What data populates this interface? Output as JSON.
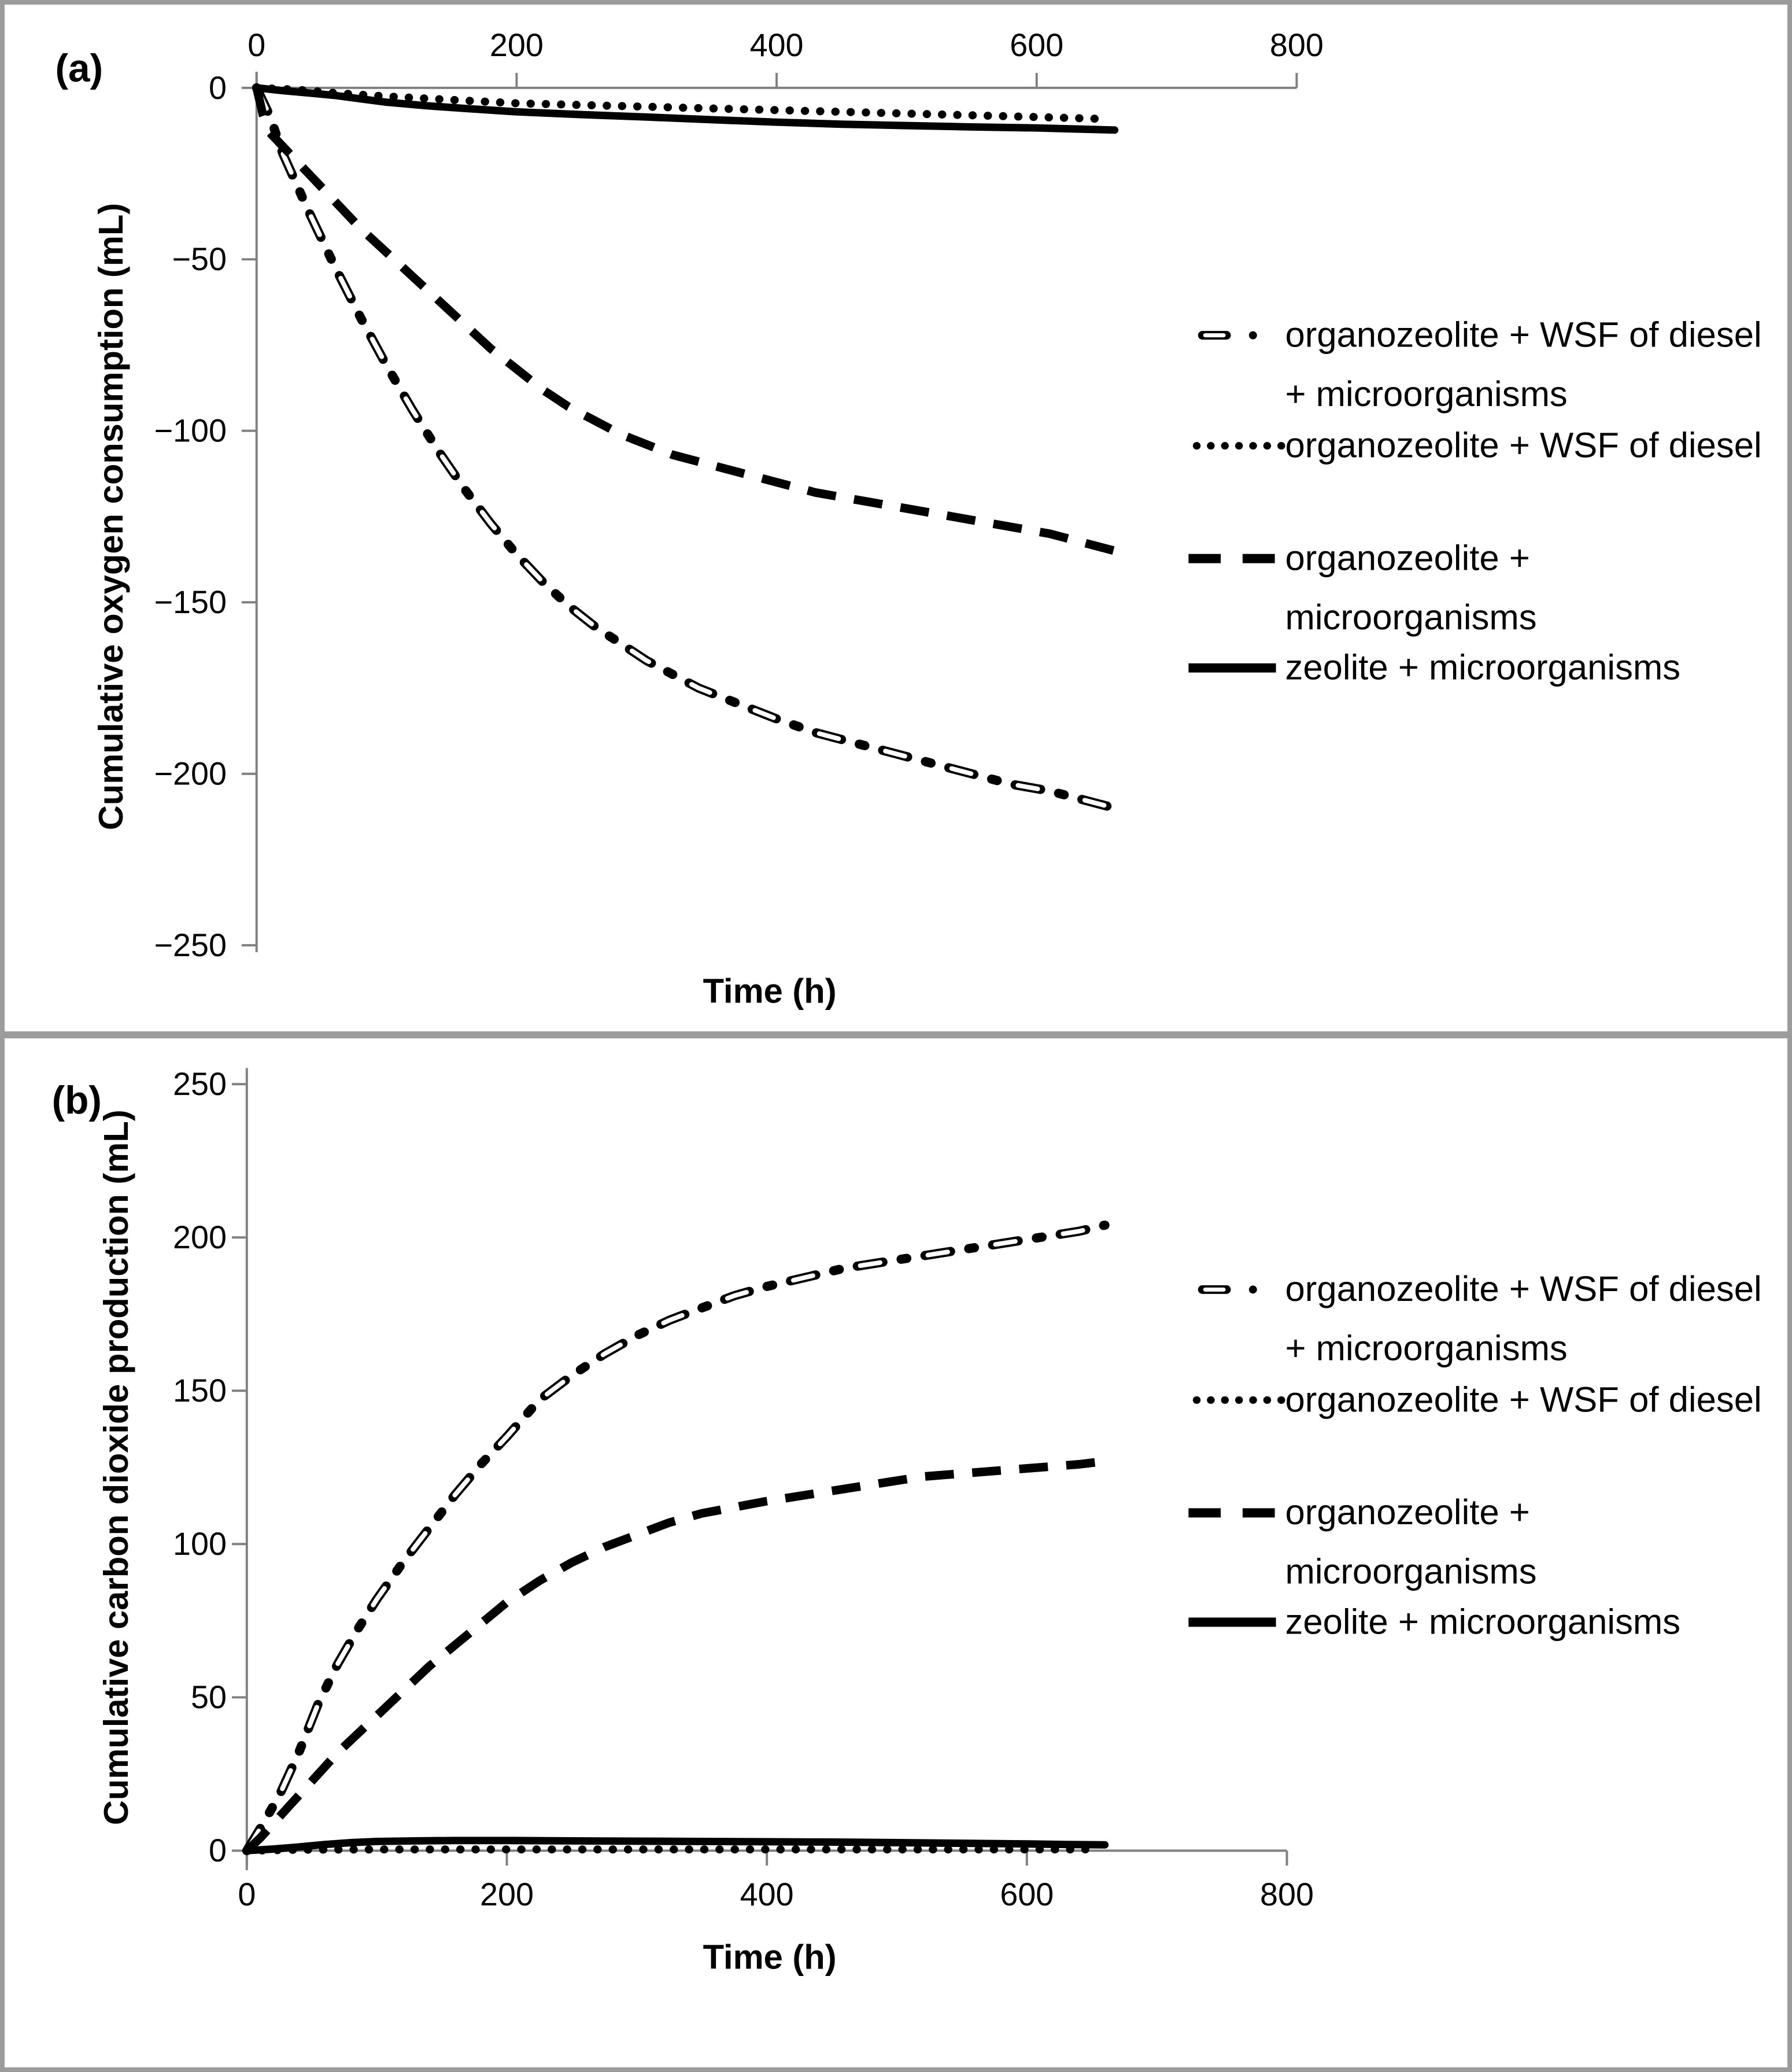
{
  "figure": {
    "panels": [
      {
        "panel_label": "(a)",
        "x_axis_title": "Time (h)",
        "y_axis_title": "Cumulative oxygen consumption (mL)"
      },
      {
        "panel_label": "(b)",
        "x_axis_title": "Time (h)",
        "y_axis_title": "Cumulative carbon dioxide production (mL)"
      }
    ],
    "colors": {
      "curve": "#000000",
      "axis": "#808080",
      "frame": "#9c9c9c",
      "background": "#ffffff"
    }
  },
  "legend": {
    "position": "right",
    "entries": [
      {
        "style": "dashdot-open",
        "lines": [
          "organozeolite + WSF of diesel",
          "+ microorganisms"
        ]
      },
      {
        "style": "dotted",
        "lines": [
          "organozeolite + WSF of diesel"
        ]
      },
      {
        "style": "dashed",
        "lines": [
          "organozeolite +",
          "microorganisms"
        ]
      },
      {
        "style": "solid",
        "lines": [
          "zeolite + microorganisms"
        ]
      }
    ]
  },
  "chart_data": [
    {
      "type": "line",
      "panel": "a",
      "title": "",
      "xlabel": "Time (h)",
      "ylabel": "Cumulative oxygen consumption (mL)",
      "xlim": [
        0,
        800
      ],
      "ylim": [
        -250,
        0
      ],
      "xticks": [
        0,
        200,
        400,
        600,
        800
      ],
      "yticks": [
        0,
        -50,
        -100,
        -150,
        -200,
        -250
      ],
      "x_axis_position": "top",
      "grid": false,
      "legend_position": "right",
      "series": [
        {
          "name": "organozeolite + WSF of diesel + microorganisms",
          "style": "dashdot-open",
          "x": [
            0,
            10,
            20,
            40,
            60,
            80,
            100,
            120,
            140,
            160,
            180,
            200,
            220,
            240,
            260,
            280,
            300,
            320,
            340,
            360,
            380,
            400,
            430,
            460,
            490,
            520,
            550,
            580,
            610,
            640,
            660
          ],
          "y": [
            0,
            -8,
            -19,
            -36,
            -52,
            -67,
            -81,
            -94,
            -106,
            -117,
            -127,
            -136,
            -144,
            -151,
            -157,
            -162,
            -167,
            -171,
            -175,
            -178,
            -181,
            -184,
            -188,
            -191,
            -194,
            -197,
            -200,
            -203,
            -205,
            -208,
            -210
          ]
        },
        {
          "name": "organozeolite + WSF of diesel",
          "style": "dotted",
          "x": [
            0,
            30,
            60,
            100,
            150,
            200,
            250,
            300,
            350,
            400,
            450,
            500,
            550,
            600,
            645
          ],
          "y": [
            0,
            -0.5,
            -1.5,
            -2.5,
            -3.5,
            -4.5,
            -5,
            -5.5,
            -6,
            -6.5,
            -7,
            -7.5,
            -8,
            -8.5,
            -9
          ]
        },
        {
          "name": "organozeolite + microorganisms",
          "style": "dashed",
          "x": [
            0,
            5,
            10,
            20,
            40,
            60,
            80,
            100,
            120,
            140,
            160,
            180,
            200,
            220,
            240,
            260,
            280,
            300,
            320,
            340,
            360,
            380,
            400,
            430,
            460,
            490,
            520,
            550,
            580,
            610,
            640,
            660
          ],
          "y": [
            0,
            -8,
            -13,
            -17,
            -25,
            -33,
            -41,
            -48,
            -55,
            -62,
            -69,
            -76,
            -82,
            -88,
            -93,
            -97,
            -101,
            -104,
            -107,
            -109,
            -111,
            -113,
            -115,
            -118,
            -120,
            -122,
            -124,
            -126,
            -128,
            -130,
            -133,
            -135
          ]
        },
        {
          "name": "zeolite + microorganisms",
          "style": "solid",
          "x": [
            0,
            20,
            40,
            60,
            80,
            100,
            130,
            160,
            200,
            250,
            300,
            350,
            400,
            450,
            500,
            550,
            600,
            630,
            660
          ],
          "y": [
            0,
            -0.8,
            -1.5,
            -2.2,
            -3.2,
            -4.2,
            -5.2,
            -6,
            -7,
            -7.8,
            -8.5,
            -9.3,
            -10,
            -10.6,
            -11,
            -11.4,
            -11.7,
            -12,
            -12.3
          ]
        }
      ]
    },
    {
      "type": "line",
      "panel": "b",
      "title": "",
      "xlabel": "Time (h)",
      "ylabel": "Cumulative carbon dioxide production (mL)",
      "xlim": [
        0,
        800
      ],
      "ylim": [
        0,
        250
      ],
      "xticks": [
        0,
        200,
        400,
        600,
        800
      ],
      "yticks": [
        250,
        200,
        150,
        100,
        50,
        0
      ],
      "x_axis_position": "bottom",
      "grid": false,
      "legend_position": "right",
      "series": [
        {
          "name": "organozeolite + WSF of diesel + microorganisms",
          "style": "dashdot-open",
          "x": [
            0,
            10,
            25,
            40,
            55,
            70,
            85,
            100,
            120,
            140,
            160,
            180,
            200,
            225,
            250,
            275,
            300,
            325,
            350,
            375,
            400,
            430,
            460,
            490,
            520,
            550,
            580,
            610,
            640,
            660
          ],
          "y": [
            0,
            7,
            18,
            32,
            48,
            61,
            72,
            82,
            94,
            105,
            116,
            126,
            135,
            147,
            155,
            162,
            168,
            173,
            177,
            181,
            184,
            187,
            190,
            192,
            194,
            196,
            198,
            200,
            202,
            204
          ]
        },
        {
          "name": "organozeolite + WSF of diesel",
          "style": "dotted",
          "x": [
            0,
            40,
            100,
            200,
            300,
            400,
            500,
            600,
            645
          ],
          "y": [
            0,
            0.3,
            0.4,
            0.4,
            0.4,
            0.4,
            0.4,
            0.4,
            0.4
          ]
        },
        {
          "name": "organozeolite + microorganisms",
          "style": "dashed",
          "x": [
            0,
            10,
            25,
            40,
            55,
            70,
            85,
            100,
            120,
            140,
            160,
            180,
            200,
            225,
            250,
            275,
            300,
            325,
            350,
            375,
            400,
            430,
            460,
            490,
            520,
            550,
            580,
            610,
            640,
            660
          ],
          "y": [
            0,
            4,
            11,
            18,
            25,
            32,
            38,
            44,
            52,
            60,
            67,
            74,
            81,
            88,
            94,
            99,
            103,
            107,
            110,
            112,
            114,
            116,
            118,
            120,
            122,
            123,
            124,
            125,
            126,
            127
          ]
        },
        {
          "name": "zeolite + microorganisms",
          "style": "solid",
          "x": [
            0,
            20,
            40,
            60,
            80,
            100,
            130,
            160,
            200,
            250,
            300,
            350,
            400,
            450,
            500,
            550,
            600,
            630,
            660
          ],
          "y": [
            0,
            0.5,
            1.2,
            2,
            2.6,
            3,
            3.2,
            3.3,
            3.3,
            3.2,
            3.1,
            3,
            2.9,
            2.8,
            2.6,
            2.4,
            2.2,
            2,
            1.9
          ]
        }
      ]
    }
  ]
}
